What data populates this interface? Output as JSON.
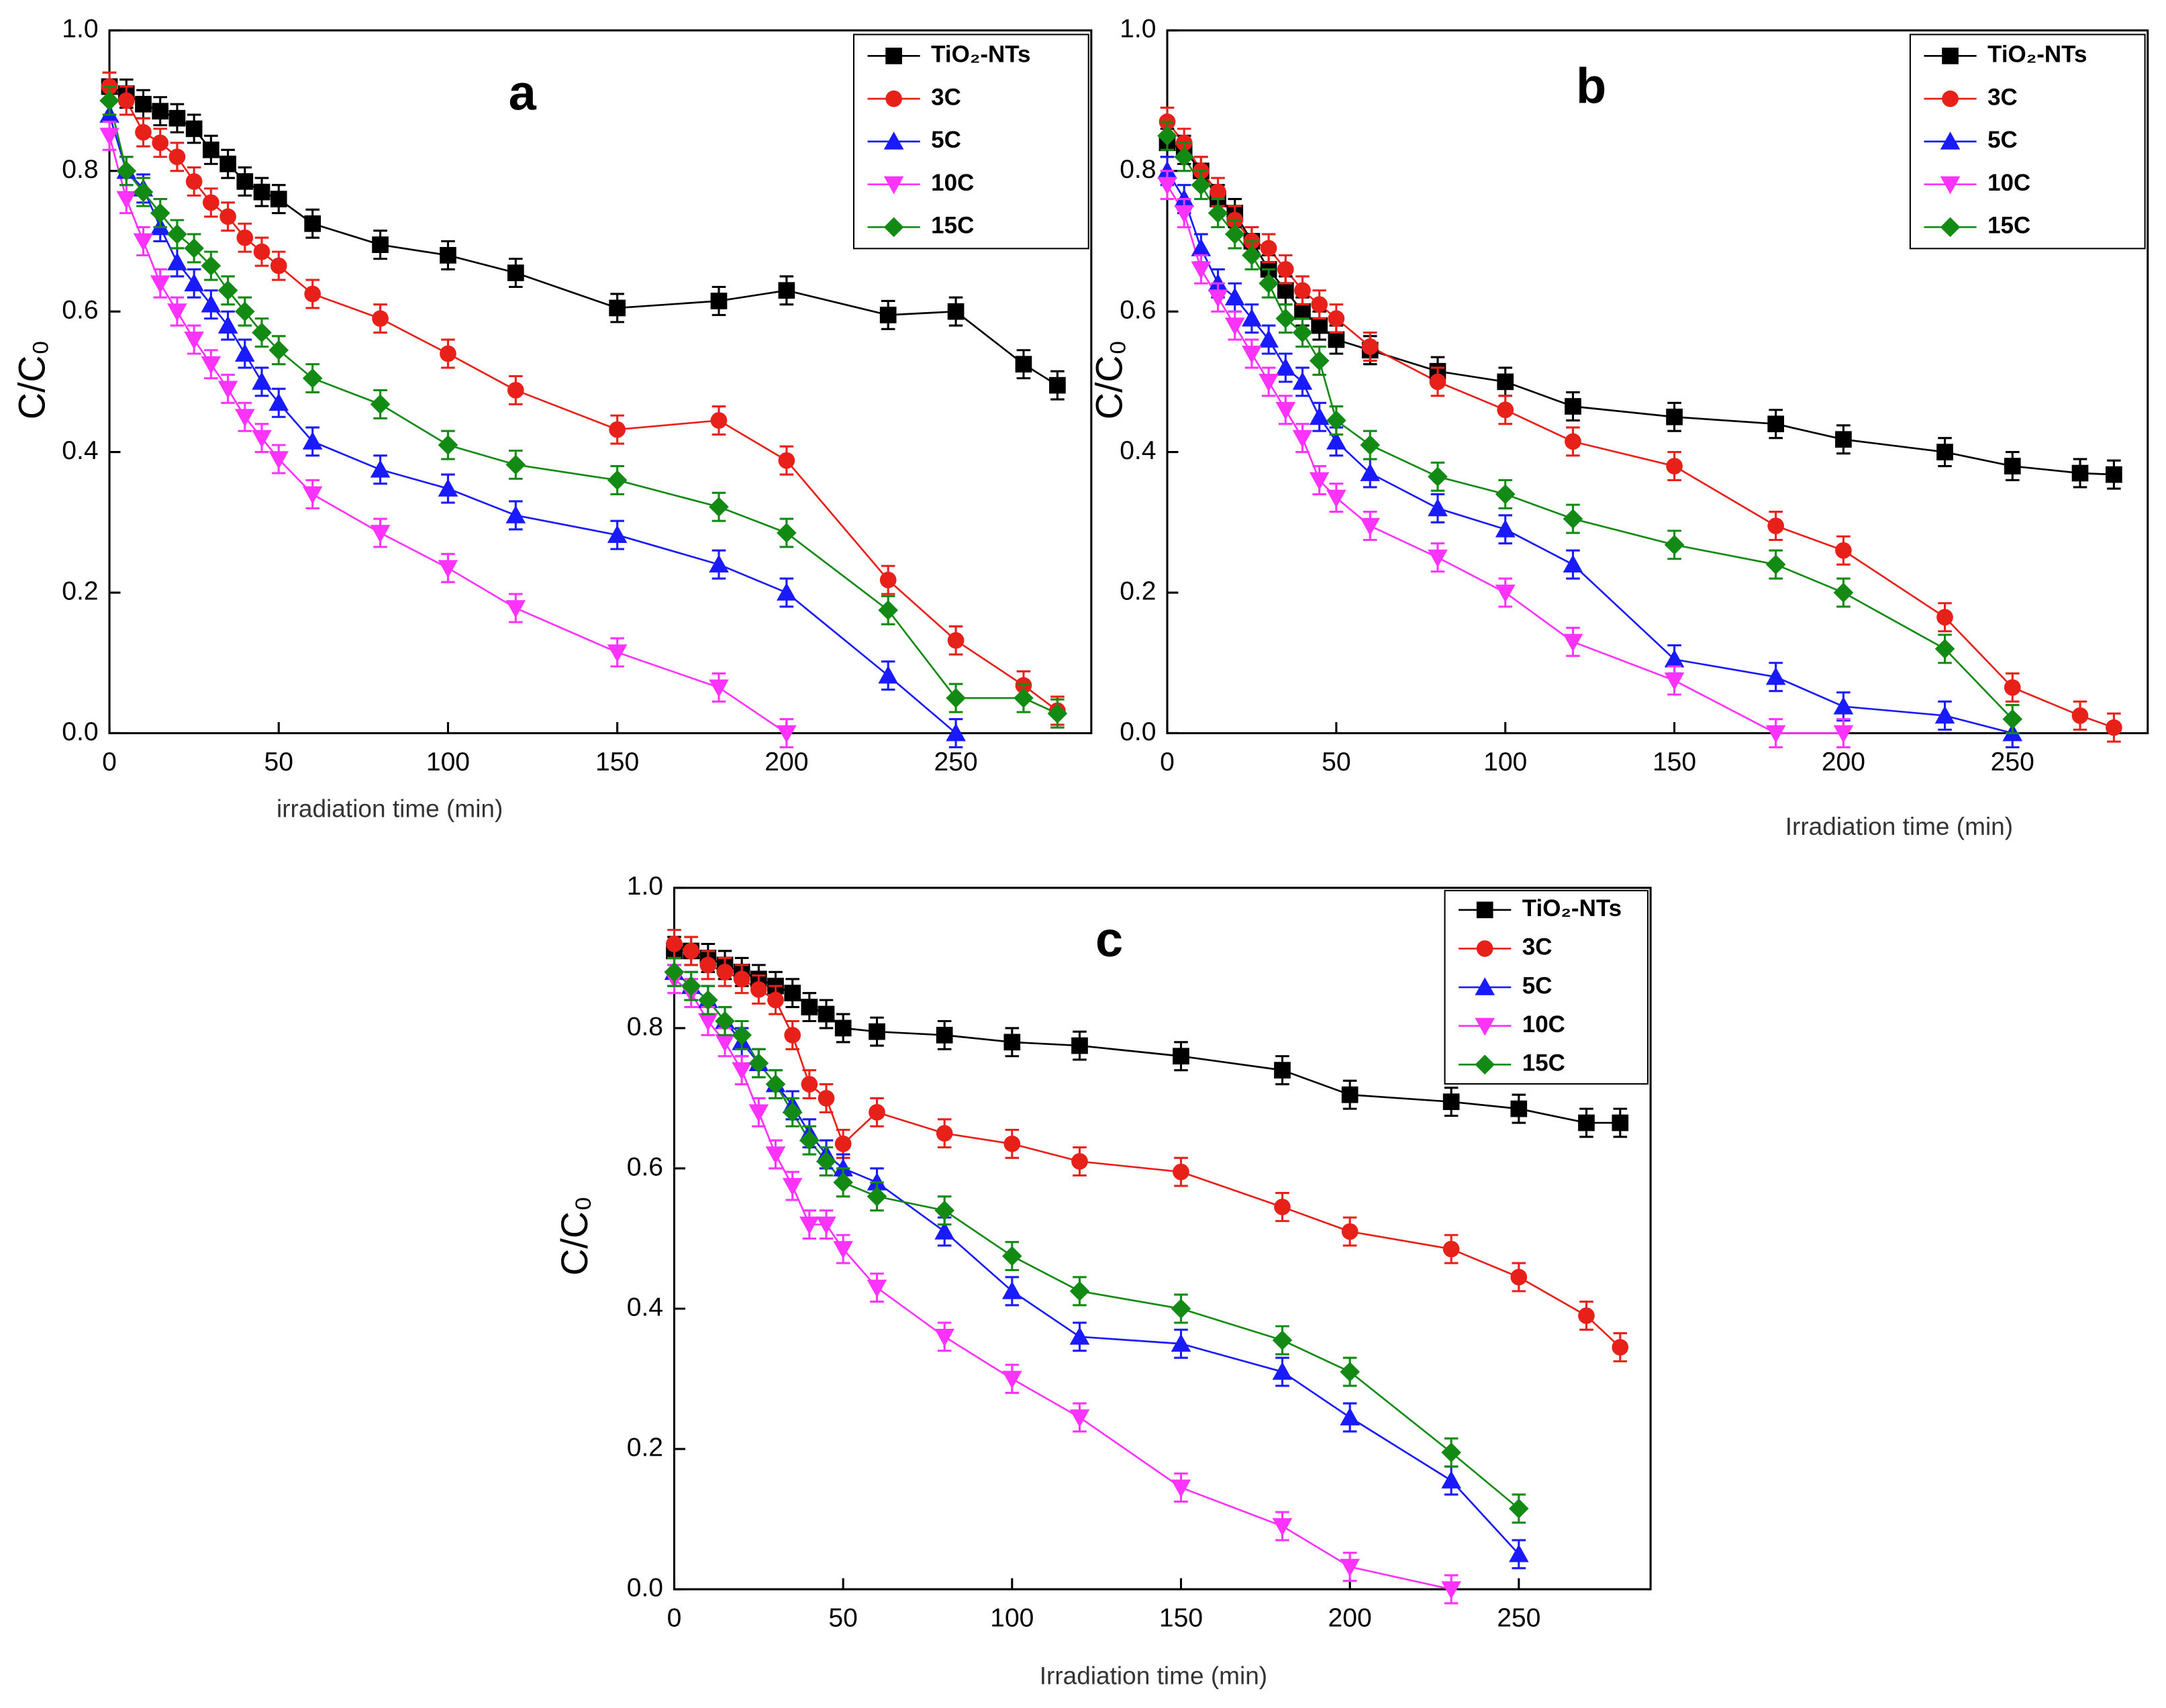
{
  "chart_data": [
    {
      "type": "line",
      "title": "a",
      "xlabel": "irradiation time (min)",
      "ylabel": "C/C₀",
      "x": [
        0,
        5,
        10,
        15,
        20,
        25,
        30,
        35,
        40,
        45,
        50,
        60,
        80,
        100,
        120,
        150,
        180,
        200,
        230,
        250,
        270,
        280
      ],
      "xlim": [
        0,
        290
      ],
      "xticks": [
        0,
        50,
        100,
        150,
        200,
        250
      ],
      "ylim": [
        0,
        1
      ],
      "yticks": [
        {
          "value": 0,
          "label": "0.0"
        },
        0.2,
        0.4,
        0.6,
        0.8,
        {
          "value": 1,
          "label": "1.0"
        }
      ],
      "legend": "upper right",
      "series": [
        {
          "name": "TiO₂-NTs",
          "color": "#000000",
          "marker": "square",
          "error": 0.02,
          "values": [
            0.92,
            0.91,
            0.895,
            0.885,
            0.875,
            0.86,
            0.83,
            0.81,
            0.785,
            0.77,
            0.76,
            0.725,
            0.695,
            0.68,
            0.655,
            0.605,
            0.615,
            0.63,
            0.595,
            0.6,
            0.525,
            0.495
          ]
        },
        {
          "name": "3C",
          "color": "#e8201a",
          "marker": "circle",
          "error": 0.02,
          "values": [
            0.92,
            0.9,
            0.855,
            0.84,
            0.82,
            0.785,
            0.755,
            0.735,
            0.705,
            0.685,
            0.665,
            0.625,
            0.59,
            0.54,
            0.488,
            0.432,
            0.445,
            0.388,
            0.218,
            0.132,
            0.068,
            0.032
          ]
        },
        {
          "name": "5C",
          "color": "#1a1aff",
          "marker": "triangle-up",
          "error": 0.02,
          "values": [
            0.88,
            0.8,
            0.775,
            0.72,
            0.67,
            0.64,
            0.61,
            0.58,
            0.54,
            0.5,
            0.47,
            0.415,
            0.375,
            0.348,
            0.31,
            0.282,
            0.24,
            0.2,
            0.082,
            0,
            null,
            null
          ]
        },
        {
          "name": "10C",
          "color": "#ff33ff",
          "marker": "triangle-down",
          "error": 0.02,
          "values": [
            0.85,
            0.76,
            0.7,
            0.64,
            0.6,
            0.56,
            0.525,
            0.49,
            0.45,
            0.42,
            0.39,
            0.34,
            0.285,
            0.235,
            0.178,
            0.115,
            0.065,
            0,
            null,
            null,
            null,
            null
          ]
        },
        {
          "name": "15C",
          "color": "#138a13",
          "marker": "diamond",
          "error": 0.02,
          "values": [
            0.9,
            0.8,
            0.77,
            0.74,
            0.71,
            0.69,
            0.665,
            0.63,
            0.6,
            0.57,
            0.545,
            0.505,
            0.468,
            0.41,
            0.382,
            0.36,
            0.322,
            0.285,
            0.175,
            0.05,
            0.05,
            0.028
          ]
        }
      ]
    },
    {
      "type": "line",
      "title": "b",
      "xlabel": "Irradiation time (min)",
      "ylabel": "C/C₀",
      "x": [
        0,
        5,
        10,
        15,
        20,
        25,
        30,
        35,
        40,
        45,
        50,
        60,
        80,
        100,
        120,
        150,
        180,
        200,
        230,
        250,
        270,
        280
      ],
      "xlim": [
        0,
        290
      ],
      "xticks": [
        0,
        50,
        100,
        150,
        200,
        250
      ],
      "ylim": [
        0,
        1
      ],
      "yticks": [
        {
          "value": 0,
          "label": "0.0"
        },
        0.2,
        0.4,
        0.6,
        0.8,
        {
          "value": 1,
          "label": "1.0"
        }
      ],
      "legend": "upper right",
      "series": [
        {
          "name": "TiO₂-NTs",
          "color": "#000000",
          "marker": "square",
          "error": 0.02,
          "values": [
            0.84,
            0.83,
            0.8,
            0.76,
            0.74,
            0.7,
            0.66,
            0.63,
            0.6,
            0.58,
            0.56,
            0.545,
            0.515,
            0.5,
            0.465,
            0.45,
            0.44,
            0.418,
            0.4,
            0.38,
            0.37,
            0.368
          ]
        },
        {
          "name": "3C",
          "color": "#e8201a",
          "marker": "circle",
          "error": 0.02,
          "values": [
            0.87,
            0.84,
            0.8,
            0.77,
            0.73,
            0.7,
            0.69,
            0.66,
            0.63,
            0.61,
            0.59,
            0.55,
            0.5,
            0.46,
            0.415,
            0.38,
            0.295,
            0.26,
            0.165,
            0.065,
            0.025,
            0.008
          ]
        },
        {
          "name": "5C",
          "color": "#1a1aff",
          "marker": "triangle-up",
          "error": 0.02,
          "values": [
            0.8,
            0.76,
            0.69,
            0.64,
            0.62,
            0.59,
            0.56,
            0.52,
            0.5,
            0.45,
            0.415,
            0.37,
            0.32,
            0.29,
            0.24,
            0.105,
            0.08,
            0.038,
            0.025,
            0,
            null,
            null
          ]
        },
        {
          "name": "10C",
          "color": "#ff33ff",
          "marker": "triangle-down",
          "error": 0.02,
          "values": [
            0.78,
            0.74,
            0.66,
            0.62,
            0.58,
            0.54,
            0.5,
            0.46,
            0.42,
            0.36,
            0.335,
            0.295,
            0.25,
            0.2,
            0.13,
            0.075,
            0,
            0,
            null,
            null,
            null,
            null
          ]
        },
        {
          "name": "15C",
          "color": "#138a13",
          "marker": "diamond",
          "error": 0.02,
          "values": [
            0.85,
            0.82,
            0.78,
            0.74,
            0.71,
            0.68,
            0.64,
            0.59,
            0.57,
            0.53,
            0.445,
            0.41,
            0.365,
            0.34,
            0.305,
            0.268,
            0.24,
            0.2,
            0.12,
            0.02,
            null,
            null
          ]
        }
      ]
    },
    {
      "type": "line",
      "title": "c",
      "xlabel": "Irradiation time (min)",
      "ylabel": "C/C₀",
      "x": [
        0,
        5,
        10,
        15,
        20,
        25,
        30,
        35,
        40,
        45,
        50,
        60,
        80,
        100,
        120,
        150,
        180,
        200,
        230,
        250,
        270,
        280
      ],
      "xlim": [
        0,
        289
      ],
      "xticks": [
        0,
        50,
        100,
        150,
        200,
        250
      ],
      "ylim": [
        0,
        1
      ],
      "yticks": [
        {
          "value": 0,
          "label": "0.0"
        },
        0.2,
        0.4,
        0.6,
        0.8,
        {
          "value": 1,
          "label": "1.0"
        }
      ],
      "legend": "upper right",
      "series": [
        {
          "name": "TiO₂-NTs",
          "color": "#000000",
          "marker": "square",
          "error": 0.02,
          "values": [
            0.91,
            0.91,
            0.9,
            0.89,
            0.88,
            0.87,
            0.86,
            0.85,
            0.83,
            0.82,
            0.8,
            0.795,
            0.79,
            0.78,
            0.775,
            0.76,
            0.74,
            0.705,
            0.695,
            0.685,
            0.665,
            0.665
          ]
        },
        {
          "name": "3C",
          "color": "#e8201a",
          "marker": "circle",
          "error": 0.02,
          "values": [
            0.92,
            0.91,
            0.89,
            0.88,
            0.87,
            0.855,
            0.84,
            0.79,
            0.72,
            0.7,
            0.635,
            0.68,
            0.65,
            0.635,
            0.61,
            0.595,
            0.545,
            0.51,
            0.485,
            0.445,
            0.39,
            0.345
          ]
        },
        {
          "name": "5C",
          "color": "#1a1aff",
          "marker": "triangle-up",
          "error": 0.02,
          "values": [
            0.88,
            0.86,
            0.84,
            0.81,
            0.78,
            0.75,
            0.72,
            0.69,
            0.65,
            0.62,
            0.6,
            0.58,
            0.51,
            0.425,
            0.36,
            0.35,
            0.31,
            0.245,
            0.155,
            0.05,
            null,
            null
          ]
        },
        {
          "name": "10C",
          "color": "#ff33ff",
          "marker": "triangle-down",
          "error": 0.02,
          "values": [
            0.87,
            0.85,
            0.81,
            0.78,
            0.74,
            0.68,
            0.62,
            0.575,
            0.52,
            0.52,
            0.485,
            0.43,
            0.36,
            0.3,
            0.245,
            0.145,
            0.09,
            0.032,
            0,
            null,
            null,
            null
          ]
        },
        {
          "name": "15C",
          "color": "#138a13",
          "marker": "diamond",
          "error": 0.02,
          "values": [
            0.88,
            0.86,
            0.84,
            0.81,
            0.79,
            0.75,
            0.72,
            0.68,
            0.64,
            0.61,
            0.58,
            0.56,
            0.54,
            0.475,
            0.425,
            0.4,
            0.355,
            0.31,
            0.195,
            0.115,
            null,
            null
          ]
        }
      ]
    }
  ]
}
